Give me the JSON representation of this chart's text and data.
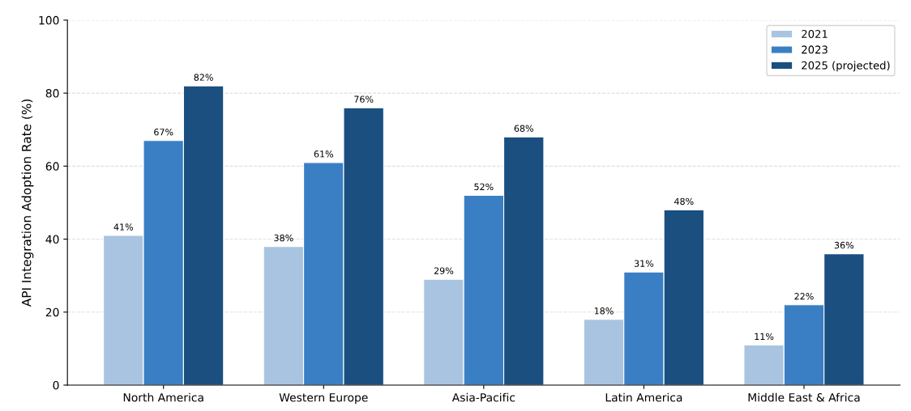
{
  "chart_data": {
    "type": "bar",
    "ylabel": "API Integration Adoption Rate (%)",
    "categories": [
      "North America",
      "Western Europe",
      "Asia-Pacific",
      "Latin America",
      "Middle East & Africa"
    ],
    "series": [
      {
        "name": "2021",
        "color": "#a8c4e0",
        "values": [
          41,
          38,
          29,
          18,
          11
        ],
        "value_labels": [
          "41%",
          "38%",
          "29%",
          "18%",
          "11%"
        ]
      },
      {
        "name": "2023",
        "color": "#3a7fc4",
        "values": [
          67,
          61,
          52,
          31,
          22
        ],
        "value_labels": [
          "67%",
          "61%",
          "52%",
          "31%",
          "22%"
        ]
      },
      {
        "name": "2025 (projected)",
        "color": "#1a4f80",
        "values": [
          82,
          76,
          68,
          48,
          36
        ],
        "value_labels": [
          "82%",
          "76%",
          "68%",
          "48%",
          "36%"
        ]
      }
    ],
    "ylim": [
      0,
      100
    ],
    "yticks": [
      0,
      20,
      40,
      60,
      80,
      100
    ],
    "grid": "y",
    "legend": "top right"
  }
}
